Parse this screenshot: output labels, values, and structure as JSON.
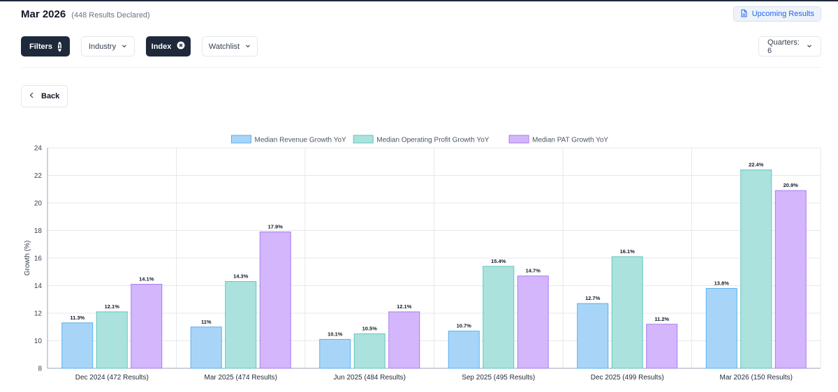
{
  "header": {
    "title": "Mar 2026",
    "results_count": "(448 Results Declared)",
    "upcoming_label": "Upcoming Results"
  },
  "filters": {
    "filters_label": "Filters",
    "filters_count": "1",
    "industry_label": "Industry",
    "index_label": "Index",
    "watchlist_label": "Watchlist",
    "quarters_label": "Quarters: 6"
  },
  "back_label": "Back",
  "icons": {
    "upcoming": "document-icon",
    "chevron": "chevron-down-icon",
    "clear": "close-circle-icon",
    "back": "chevron-left-icon"
  },
  "colors": {
    "dark": "#1e293b",
    "accent": "#2563eb"
  },
  "chart_data": {
    "type": "bar",
    "ylabel": "Growth (%)",
    "ylim": [
      8,
      24
    ],
    "yticks": [
      8,
      10,
      12,
      14,
      16,
      18,
      20,
      22,
      24
    ],
    "grid": true,
    "legend_position": "top",
    "categories": [
      "Dec 2024 (472 Results)",
      "Mar 2025 (474 Results)",
      "Jun 2025 (484 Results)",
      "Sep 2025 (495 Results)",
      "Dec 2025 (499 Results)",
      "Mar 2026 (150 Results)"
    ],
    "series": [
      {
        "name": "Median Revenue Growth YoY",
        "values": [
          11.3,
          11,
          10.1,
          10.7,
          12.7,
          13.8
        ],
        "labels": [
          "11.3%",
          "11%",
          "10.1%",
          "10.7%",
          "12.7%",
          "13.8%"
        ],
        "fill": "#a8d5f7",
        "stroke": "#5aaef0"
      },
      {
        "name": "Median Operating Profit Growth YoY",
        "values": [
          12.1,
          14.3,
          10.5,
          15.4,
          16.1,
          22.4
        ],
        "labels": [
          "12.1%",
          "14.3%",
          "10.5%",
          "15.4%",
          "16.1%",
          "22.4%"
        ],
        "fill": "#abe2de",
        "stroke": "#62c6bd"
      },
      {
        "name": "Median PAT Growth YoY",
        "values": [
          14.1,
          17.9,
          12.1,
          14.7,
          11.2,
          20.9
        ],
        "labels": [
          "14.1%",
          "17.9%",
          "12.1%",
          "14.7%",
          "11.2%",
          "20.9%"
        ],
        "fill": "#d3b6fb",
        "stroke": "#a97cf2"
      }
    ]
  }
}
